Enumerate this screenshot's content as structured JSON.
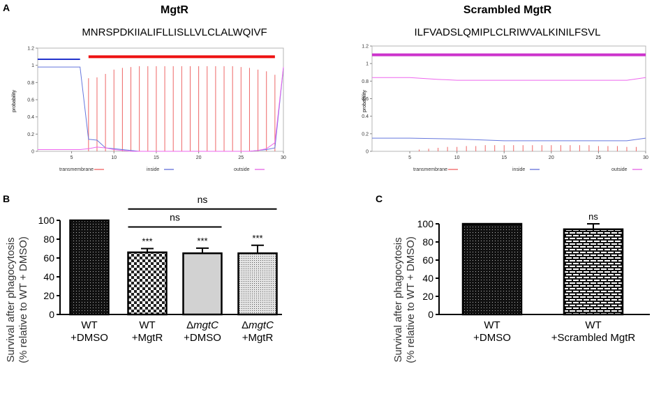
{
  "panel_labels": {
    "a": "A",
    "b": "B",
    "c": "C"
  },
  "chart_data": [
    {
      "id": "A1",
      "type": "line",
      "title": "MgtR",
      "subtitle": "MNRSPDKIIALIFLLISLLVLCLALWQIVF",
      "ylabel": "probability",
      "xlim": [
        1,
        30
      ],
      "ylim": [
        0,
        1.2
      ],
      "xticks": [
        5,
        10,
        15,
        20,
        25,
        30
      ],
      "yticks": [
        0,
        0.2,
        0.4,
        0.6,
        0.8,
        1,
        1.2
      ],
      "ytick_labels": [
        "0",
        "0.2",
        "0.4",
        "0.6",
        "0.8",
        "1",
        "1.2"
      ],
      "legend": [
        {
          "name": "transmembrane",
          "color": "#ee3333"
        },
        {
          "name": "inside",
          "color": "#3344cc"
        },
        {
          "name": "outside",
          "color": "#dd33dd"
        }
      ],
      "segments": [
        {
          "name": "inside",
          "color": "#2233cc",
          "x": [
            1,
            6
          ],
          "y": 1.07
        },
        {
          "name": "transmembrane",
          "color": "#ee1111",
          "x": [
            7,
            29
          ],
          "y": 1.1
        }
      ],
      "series": [
        {
          "name": "transmembrane",
          "style": "impulse",
          "color": "#ee6666",
          "x": [
            7,
            8,
            9,
            10,
            11,
            12,
            13,
            14,
            15,
            16,
            17,
            18,
            19,
            20,
            21,
            22,
            23,
            24,
            25,
            26,
            27,
            28,
            29
          ],
          "values": [
            0.85,
            0.86,
            0.9,
            0.95,
            0.97,
            0.98,
            0.99,
            0.99,
            0.99,
            0.99,
            0.99,
            0.99,
            0.99,
            0.99,
            0.99,
            0.99,
            0.99,
            0.99,
            0.98,
            0.97,
            0.95,
            0.93,
            0.89
          ]
        },
        {
          "name": "inside",
          "style": "line",
          "color": "#6677dd",
          "x": [
            1,
            2,
            3,
            4,
            5,
            6,
            7,
            8,
            9,
            10,
            11,
            12,
            13,
            14,
            15,
            16,
            17,
            18,
            19,
            20,
            21,
            22,
            23,
            24,
            25,
            26,
            27,
            28,
            29,
            30
          ],
          "values": [
            0.98,
            0.98,
            0.98,
            0.98,
            0.98,
            0.98,
            0.14,
            0.13,
            0.04,
            0.03,
            0.02,
            0.01,
            0.0,
            0.0,
            0.0,
            0.0,
            0.0,
            0.0,
            0.0,
            0.0,
            0.0,
            0.0,
            0.0,
            0.0,
            0.0,
            0.0,
            0.01,
            0.02,
            0.04,
            0.97
          ]
        },
        {
          "name": "outside",
          "style": "line",
          "color": "#ee66ee",
          "x": [
            1,
            2,
            3,
            4,
            5,
            6,
            7,
            8,
            9,
            10,
            11,
            12,
            13,
            14,
            15,
            16,
            17,
            18,
            19,
            20,
            21,
            22,
            23,
            24,
            25,
            26,
            27,
            28,
            29,
            30
          ],
          "values": [
            0.02,
            0.02,
            0.02,
            0.02,
            0.02,
            0.02,
            0.03,
            0.05,
            0.04,
            0.02,
            0.01,
            0.0,
            0.0,
            0.0,
            0.0,
            0.0,
            0.0,
            0.0,
            0.0,
            0.0,
            0.0,
            0.0,
            0.0,
            0.0,
            0.0,
            0.0,
            0.01,
            0.03,
            0.1,
            0.98
          ]
        }
      ]
    },
    {
      "id": "A2",
      "type": "line",
      "title": "Scrambled MgtR",
      "subtitle": "ILFVADSLQMIPLCLRIWVALKINILFSVL",
      "ylabel": "probability",
      "xlim": [
        1,
        30
      ],
      "ylim": [
        0,
        1.2
      ],
      "xticks": [
        5,
        10,
        15,
        20,
        25,
        30
      ],
      "yticks": [
        0,
        0.2,
        0.4,
        0.6,
        0.8,
        1,
        1.2
      ],
      "ytick_labels": [
        "0",
        "0.2",
        "0.4",
        "0.6",
        "0.8",
        "1",
        "1.2"
      ],
      "legend": [
        {
          "name": "transmembrane",
          "color": "#ee3333"
        },
        {
          "name": "inside",
          "color": "#3344cc"
        },
        {
          "name": "outside",
          "color": "#dd33dd"
        }
      ],
      "segments": [
        {
          "name": "outside",
          "color": "#cc33cc",
          "x": [
            1,
            30
          ],
          "y": 1.1
        }
      ],
      "series": [
        {
          "name": "transmembrane",
          "style": "impulse",
          "color": "#ee6666",
          "x": [
            6,
            7,
            8,
            9,
            10,
            11,
            12,
            13,
            14,
            15,
            16,
            17,
            18,
            19,
            20,
            21,
            22,
            23,
            24,
            25,
            26,
            27,
            28,
            29
          ],
          "values": [
            0.02,
            0.03,
            0.04,
            0.05,
            0.05,
            0.06,
            0.06,
            0.07,
            0.07,
            0.07,
            0.07,
            0.07,
            0.07,
            0.07,
            0.07,
            0.07,
            0.07,
            0.07,
            0.07,
            0.06,
            0.06,
            0.06,
            0.05,
            0.05
          ]
        },
        {
          "name": "inside",
          "style": "line",
          "color": "#6677dd",
          "x": [
            1,
            5,
            10,
            15,
            20,
            25,
            28,
            30
          ],
          "values": [
            0.15,
            0.15,
            0.14,
            0.12,
            0.12,
            0.12,
            0.12,
            0.15
          ]
        },
        {
          "name": "outside",
          "style": "line",
          "color": "#ee66ee",
          "x": [
            1,
            5,
            8,
            10,
            15,
            20,
            25,
            28,
            30
          ],
          "values": [
            0.84,
            0.84,
            0.82,
            0.81,
            0.81,
            0.81,
            0.81,
            0.81,
            0.84
          ]
        }
      ]
    },
    {
      "id": "B",
      "type": "bar",
      "ylabel_lines": [
        "Survival after phagocytosis",
        "(% relative to WT + DMSO)"
      ],
      "ylim": [
        0,
        100
      ],
      "yticks": [
        0,
        20,
        40,
        60,
        80,
        100
      ],
      "categories": [
        {
          "line1": "WT",
          "line2": "+DMSO",
          "italic": ""
        },
        {
          "line1": "WT",
          "line2": "+MgtR",
          "italic": ""
        },
        {
          "line1": "Δ",
          "italic": "mgtC",
          "line2": "+DMSO"
        },
        {
          "line1": "Δ",
          "italic": "mgtC",
          "line2": "+MgtR"
        }
      ],
      "values": [
        100,
        66,
        65,
        65
      ],
      "errors": [
        0,
        4,
        5.5,
        8.5
      ],
      "patterns": [
        "dots-dark",
        "checker",
        "solid-gray",
        "dots-light"
      ],
      "annotations": [
        "",
        "***",
        "***",
        "***"
      ],
      "brackets": [
        {
          "from": 1,
          "to": 3,
          "level": 112,
          "label": "ns"
        },
        {
          "from": 1,
          "to": 2,
          "level": 93,
          "label": "ns"
        }
      ]
    },
    {
      "id": "C",
      "type": "bar",
      "ylabel_lines": [
        "Survival after phagocytosis",
        "(% relative to WT + DMSO)"
      ],
      "ylim": [
        0,
        100
      ],
      "yticks": [
        0,
        20,
        40,
        60,
        80,
        100
      ],
      "categories": [
        {
          "line1": "WT",
          "line2": "+DMSO",
          "italic": ""
        },
        {
          "line1": "WT",
          "line2": "+Scrambled MgtR",
          "italic": ""
        }
      ],
      "values": [
        100,
        94
      ],
      "errors": [
        0,
        6
      ],
      "patterns": [
        "dots-dark",
        "bricks"
      ],
      "annotations": [
        "",
        "ns"
      ],
      "brackets": []
    }
  ]
}
